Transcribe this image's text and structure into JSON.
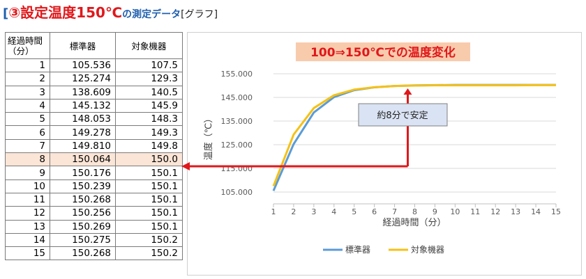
{
  "heading": {
    "open_bracket": "[",
    "title": "③設定温度150℃",
    "subtitle": "の測定データ",
    "tag": "[グラフ]"
  },
  "table": {
    "headers": [
      "経過時間\n（分）",
      "標準器",
      "対象機器"
    ],
    "rows": [
      [
        "1",
        "105.536",
        "107.5"
      ],
      [
        "2",
        "125.274",
        "129.3"
      ],
      [
        "3",
        "138.609",
        "140.5"
      ],
      [
        "4",
        "145.132",
        "145.9"
      ],
      [
        "5",
        "148.053",
        "148.3"
      ],
      [
        "6",
        "149.278",
        "149.3"
      ],
      [
        "7",
        "149.810",
        "149.8"
      ],
      [
        "8",
        "150.064",
        "150.0"
      ],
      [
        "9",
        "150.176",
        "150.1"
      ],
      [
        "10",
        "150.239",
        "150.1"
      ],
      [
        "11",
        "150.268",
        "150.1"
      ],
      [
        "12",
        "150.256",
        "150.1"
      ],
      [
        "13",
        "150.269",
        "150.1"
      ],
      [
        "14",
        "150.275",
        "150.2"
      ],
      [
        "15",
        "150.268",
        "150.2"
      ]
    ],
    "highlight_row_index": 7,
    "highlight_color": "#fbe5d6"
  },
  "chart_data": {
    "type": "line",
    "title": "100⇒150℃での温度変化",
    "title_bg": "#f8cbad",
    "title_color": "#e0181b",
    "xlabel": "経過時間（分）",
    "ylabel": "温度（℃）",
    "x": [
      1,
      2,
      3,
      4,
      5,
      6,
      7,
      8,
      9,
      10,
      11,
      12,
      13,
      14,
      15
    ],
    "ylim": [
      100,
      155
    ],
    "yticks": [
      "105.000",
      "115.000",
      "125.000",
      "135.000",
      "145.000",
      "155.000"
    ],
    "ytick_values": [
      105,
      115,
      125,
      135,
      145,
      155
    ],
    "grid": true,
    "legend_position": "bottom",
    "series": [
      {
        "name": "標準器",
        "color": "#5b9bd5",
        "values": [
          105.536,
          125.274,
          138.609,
          145.132,
          148.053,
          149.278,
          149.81,
          150.064,
          150.176,
          150.239,
          150.268,
          150.256,
          150.269,
          150.275,
          150.268
        ]
      },
      {
        "name": "対象機器",
        "color": "#f5c116",
        "values": [
          107.5,
          129.3,
          140.5,
          145.9,
          148.3,
          149.3,
          149.8,
          150.0,
          150.1,
          150.1,
          150.1,
          150.1,
          150.1,
          150.2,
          150.2
        ]
      }
    ],
    "annotation": {
      "text": "約8分で安定",
      "x": 8,
      "y": 150
    },
    "arrow_color": "#e0181b"
  }
}
